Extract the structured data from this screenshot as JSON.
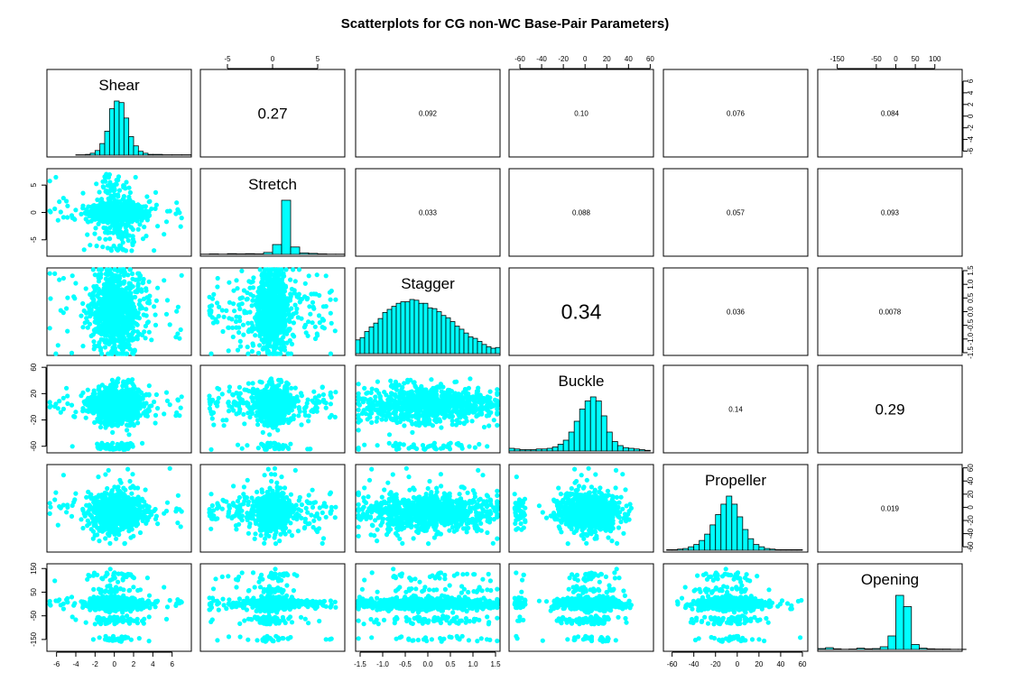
{
  "title": "Scatterplots for CG non-WC Base-Pair Parameters)",
  "colors": {
    "points": "#00ffff",
    "bars": "#00ffff",
    "frame": "#000000"
  },
  "chart_data": {
    "type": "scatter",
    "variables": [
      "Shear",
      "Stretch",
      "Stagger",
      "Buckle",
      "Propeller",
      "Opening"
    ],
    "ranges": [
      [
        -7,
        8
      ],
      [
        -8,
        8
      ],
      [
        -1.6,
        1.6
      ],
      [
        -70,
        63
      ],
      [
        -68,
        65
      ],
      [
        -200,
        170
      ]
    ],
    "ticks": {
      "Shear": {
        "values": [
          -6,
          -4,
          -2,
          0,
          2,
          4,
          6
        ],
        "labels": [
          "-6",
          "-4",
          "-2",
          "0",
          "2",
          "4",
          "6"
        ]
      },
      "Stretch": {
        "values": [
          -5,
          0,
          5
        ],
        "labels": [
          "-5",
          "0",
          "5"
        ]
      },
      "Stagger": {
        "values": [
          -1.5,
          -1.0,
          -0.5,
          0.0,
          0.5,
          1.0,
          1.5
        ],
        "labels": [
          "-1.5",
          "-1.0",
          "-0.5",
          "0.0",
          "0.5",
          "1.0",
          "1.5"
        ]
      },
      "Buckle": {
        "values": [
          -60,
          -40,
          -20,
          0,
          20,
          40,
          60
        ],
        "labels": [
          "-60",
          "-40",
          "-20",
          "0",
          "20",
          "40",
          "60"
        ]
      },
      "Propeller": {
        "values": [
          -60,
          -40,
          -20,
          0,
          20,
          40,
          60
        ],
        "labels": [
          "-60",
          "-40",
          "-20",
          "0",
          "20",
          "40",
          "60"
        ]
      },
      "Opening": {
        "values": [
          -150,
          -50,
          0,
          50,
          100
        ],
        "labels": [
          "-150",
          "-50",
          "0",
          "50",
          "100"
        ]
      }
    },
    "left_ticks": {
      "Stretch": {
        "values": [
          -5,
          0,
          5
        ],
        "labels": [
          "-5",
          "0",
          "5"
        ]
      },
      "Buckle": {
        "values": [
          -60,
          -20,
          20,
          60
        ],
        "labels": [
          "-60",
          "-20",
          "20",
          "60"
        ]
      },
      "Opening": {
        "values": [
          -150,
          -50,
          50,
          150
        ],
        "labels": [
          "-150",
          "-50",
          "50",
          "150"
        ]
      }
    },
    "right_ticks": {
      "Shear": {
        "values": [
          -6,
          -4,
          -2,
          0,
          2,
          4,
          6
        ],
        "labels": [
          "-6",
          "-4",
          "-2",
          "0",
          "2",
          "4",
          "6"
        ]
      },
      "Stagger": {
        "values": [
          -1.5,
          -1.0,
          -0.5,
          0.0,
          0.5,
          1.0,
          1.5
        ],
        "labels": [
          "-1.5",
          "-1.0",
          "-0.5",
          "0.0",
          "0.5",
          "1.0",
          "1.5"
        ]
      },
      "Propeller": {
        "values": [
          -60,
          -40,
          -20,
          0,
          20,
          40,
          60
        ],
        "labels": [
          "-60",
          "-40",
          "-20",
          "0",
          "20",
          "40",
          "60"
        ]
      }
    },
    "correlations": [
      {
        "row": 0,
        "col": 1,
        "text": "0.27",
        "size": "large"
      },
      {
        "row": 0,
        "col": 2,
        "text": "0.092",
        "size": "small"
      },
      {
        "row": 0,
        "col": 3,
        "text": "0.10",
        "size": "small"
      },
      {
        "row": 0,
        "col": 4,
        "text": "0.076",
        "size": "small"
      },
      {
        "row": 0,
        "col": 5,
        "text": "0.084",
        "size": "small"
      },
      {
        "row": 1,
        "col": 2,
        "text": "0.033",
        "size": "small"
      },
      {
        "row": 1,
        "col": 3,
        "text": "0.088",
        "size": "small"
      },
      {
        "row": 1,
        "col": 4,
        "text": "0.057",
        "size": "small"
      },
      {
        "row": 1,
        "col": 5,
        "text": "0.093",
        "size": "small"
      },
      {
        "row": 2,
        "col": 3,
        "text": "0.34",
        "size": "xlarge"
      },
      {
        "row": 2,
        "col": 4,
        "text": "0.036",
        "size": "small"
      },
      {
        "row": 2,
        "col": 5,
        "text": "0.0078",
        "size": "small"
      },
      {
        "row": 3,
        "col": 4,
        "text": "0.14",
        "size": "small"
      },
      {
        "row": 3,
        "col": 5,
        "text": "0.29",
        "size": "large"
      },
      {
        "row": 4,
        "col": 5,
        "text": "0.019",
        "size": "small"
      }
    ],
    "histograms": [
      {
        "variable": "Shear",
        "bins": [
          -7,
          -6,
          -5,
          -4,
          -3,
          -2.5,
          -2,
          -1.5,
          -1,
          -0.5,
          0,
          0.5,
          1,
          1.5,
          2,
          2.5,
          3,
          3.5,
          4,
          5,
          6,
          7,
          8
        ],
        "counts": [
          0,
          0,
          0,
          1,
          2,
          5,
          12,
          30,
          62,
          120,
          140,
          136,
          96,
          48,
          24,
          10,
          5,
          2,
          2,
          1,
          1,
          1
        ]
      },
      {
        "variable": "Stretch",
        "bins": [
          -8,
          -7,
          -6,
          -5,
          -4,
          -3,
          -2,
          -1,
          0,
          1,
          2,
          3,
          4,
          5,
          6,
          7,
          8
        ],
        "counts": [
          1,
          2,
          1,
          3,
          2,
          3,
          2,
          8,
          40,
          220,
          30,
          6,
          4,
          2,
          1,
          1
        ]
      },
      {
        "variable": "Stagger",
        "bins": [
          -1.6,
          -1.5,
          -1.4,
          -1.3,
          -1.2,
          -1.1,
          -1.0,
          -0.9,
          -0.8,
          -0.7,
          -0.6,
          -0.5,
          -0.4,
          -0.3,
          -0.2,
          -0.1,
          0.0,
          0.1,
          0.2,
          0.3,
          0.4,
          0.5,
          0.6,
          0.7,
          0.8,
          0.9,
          1.0,
          1.1,
          1.2,
          1.3,
          1.4,
          1.5,
          1.6
        ],
        "counts": [
          18,
          21,
          29,
          35,
          40,
          46,
          54,
          58,
          62,
          66,
          68,
          68,
          71,
          70,
          66,
          66,
          60,
          59,
          55,
          50,
          47,
          42,
          36,
          32,
          27,
          22,
          20,
          16,
          12,
          9,
          7,
          8
        ]
      },
      {
        "variable": "Buckle",
        "bins": [
          -70,
          -65,
          -60,
          -55,
          -50,
          -45,
          -40,
          -35,
          -30,
          -25,
          -20,
          -15,
          -10,
          -5,
          0,
          5,
          10,
          15,
          20,
          25,
          30,
          35,
          40,
          45,
          50,
          55,
          60
        ],
        "counts": [
          4,
          3,
          2,
          2,
          2,
          3,
          3,
          4,
          6,
          10,
          16,
          28,
          44,
          62,
          74,
          80,
          74,
          52,
          28,
          14,
          8,
          5,
          4,
          3,
          2,
          1
        ]
      },
      {
        "variable": "Propeller",
        "bins": [
          -65,
          -60,
          -55,
          -50,
          -45,
          -40,
          -35,
          -30,
          -25,
          -20,
          -15,
          -10,
          -5,
          0,
          5,
          10,
          15,
          20,
          25,
          30,
          35,
          40,
          45,
          50,
          55,
          60
        ],
        "counts": [
          1,
          1,
          2,
          3,
          6,
          10,
          17,
          28,
          44,
          62,
          80,
          94,
          80,
          58,
          36,
          20,
          10,
          6,
          3,
          2,
          1,
          1,
          1,
          1,
          1
        ]
      },
      {
        "variable": "Opening",
        "bins": [
          -200,
          -180,
          -160,
          -140,
          -120,
          -100,
          -80,
          -60,
          -40,
          -20,
          0,
          20,
          40,
          60,
          80,
          100,
          120,
          140,
          160,
          180
        ],
        "counts": [
          4,
          8,
          3,
          1,
          2,
          6,
          3,
          4,
          12,
          60,
          240,
          190,
          22,
          6,
          3,
          2,
          2,
          1,
          1
        ]
      }
    ]
  }
}
